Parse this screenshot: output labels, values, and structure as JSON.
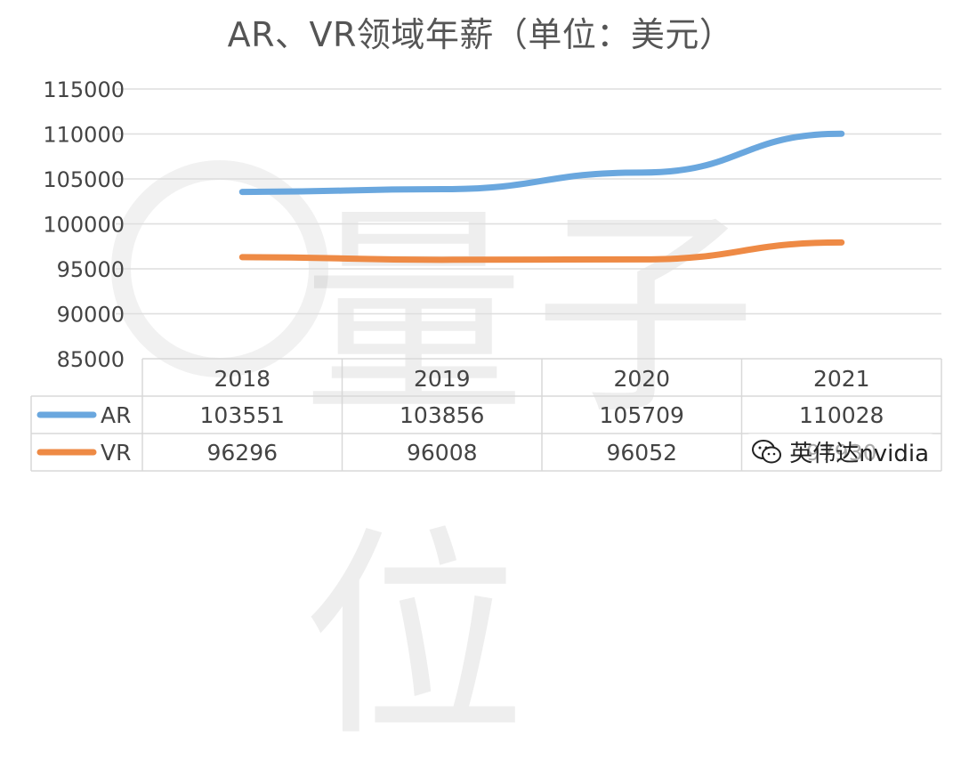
{
  "title": "AR、VR领域年薪（单位：美元）",
  "watermark": "量子位",
  "wechat_tag": "英伟达nvidia",
  "chart_data": {
    "type": "line",
    "title": "AR、VR领域年薪（单位：美元）",
    "categories": [
      "2018",
      "2019",
      "2020",
      "2021"
    ],
    "ylim": [
      85000,
      115000
    ],
    "yticks": [
      115000,
      110000,
      105000,
      100000,
      95000,
      90000,
      85000
    ],
    "grid": true,
    "legend": "in data table",
    "series": [
      {
        "name": "AR",
        "color": "#6aa7de",
        "values": [
          103551,
          103856,
          105709,
          110028
        ]
      },
      {
        "name": "VR",
        "color": "#ee8a45",
        "values": [
          96296,
          96008,
          96052,
          97930
        ]
      }
    ]
  }
}
